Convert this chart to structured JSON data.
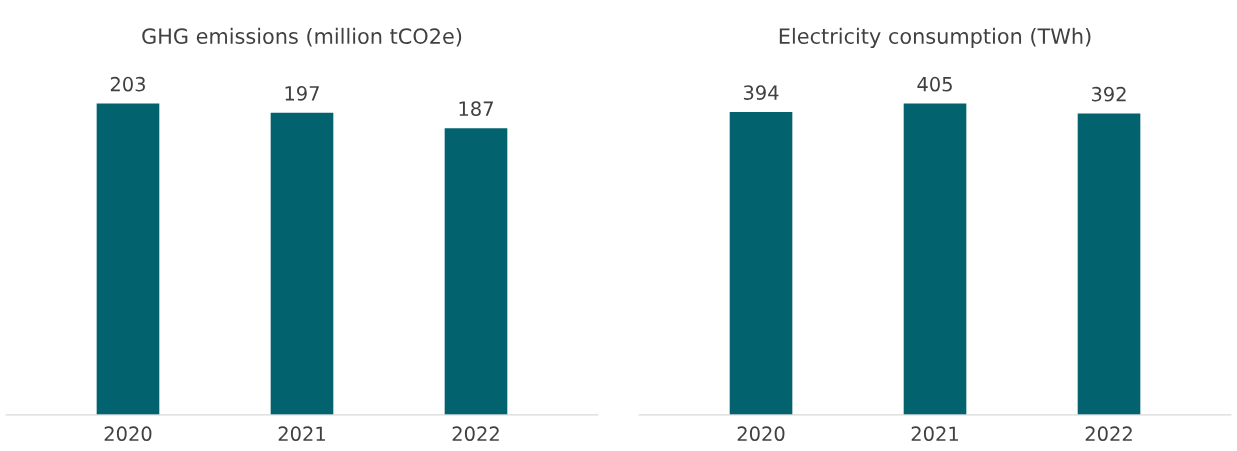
{
  "chart_data": [
    {
      "type": "bar",
      "title": "GHG emissions (million tCO2e)",
      "categories": [
        "2020",
        "2021",
        "2022"
      ],
      "values": [
        203,
        197,
        187
      ],
      "color": "#02636f",
      "data_labels": true,
      "grid": false,
      "legend": false
    },
    {
      "type": "bar",
      "title": "Electricity consumption (TWh)",
      "categories": [
        "2020",
        "2021",
        "2022"
      ],
      "values": [
        394,
        405,
        392
      ],
      "color": "#02636f",
      "data_labels": true,
      "grid": false,
      "legend": false
    }
  ]
}
